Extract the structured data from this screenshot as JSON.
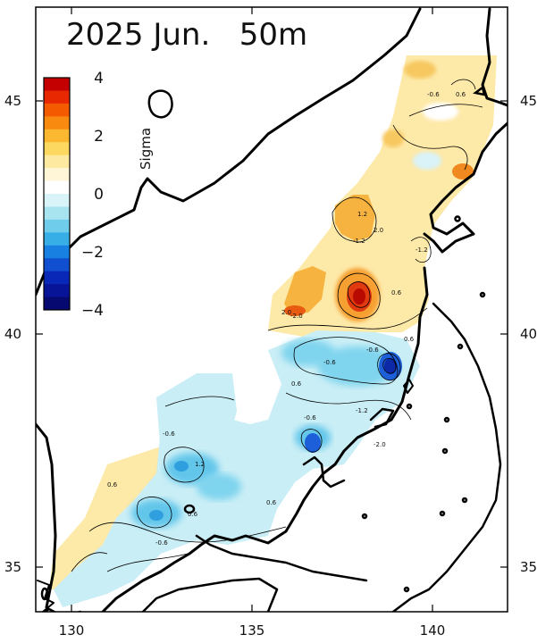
{
  "map": {
    "title": "2025 Jun.   50m",
    "colorbar": {
      "label": "Sigma",
      "tick_labels": [
        "4",
        "2",
        "0",
        "−2",
        "−4"
      ],
      "colors_top_to_bottom": [
        "#c40000",
        "#e82800",
        "#f45a00",
        "#f88a10",
        "#fbb830",
        "#fdd860",
        "#fdeaa0",
        "#fff6d8",
        "#ffffff",
        "#d8f4f8",
        "#a8e4f0",
        "#70cceb",
        "#38aee6",
        "#1880e0",
        "#1050d0",
        "#0a28b8",
        "#081498",
        "#060a70"
      ]
    },
    "axes": {
      "x_ticks": [
        "130",
        "135",
        "140"
      ],
      "y_ticks_left": [
        "45",
        "40",
        "35"
      ],
      "y_ticks_right": [
        "45",
        "40",
        "35"
      ]
    },
    "contour_labels": [
      "-0.6",
      "0.6",
      "1.2",
      "-1.2",
      "2.0",
      "-2.0",
      "0.6",
      "-0.6",
      "-0.6",
      "0.6",
      "-1.2",
      "-0.6",
      "2.0",
      "-2.0",
      "0.6",
      "-0.6",
      "0.6",
      "1.2",
      "-0.6",
      "0.6",
      "-1.2",
      "0.6"
    ],
    "colors": {
      "positive_high": "#e03a10",
      "positive_mid": "#f7b340",
      "positive_low": "#fde9a8",
      "negative_low": "#c9eef6",
      "negative_mid": "#62c6ea",
      "negative_high": "#0c2aa8",
      "coast": "#000000"
    }
  }
}
